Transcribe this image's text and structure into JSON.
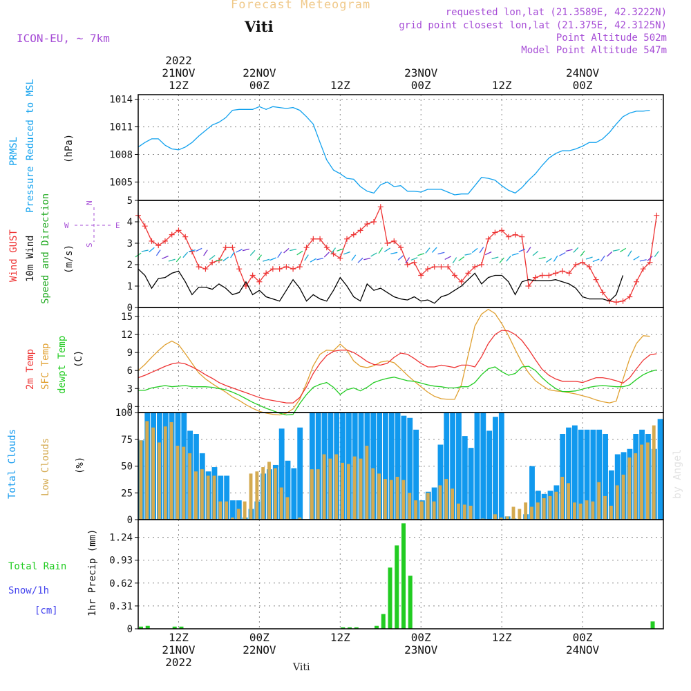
{
  "header": {
    "subtitle": "Forecast Meteogram",
    "location": "Viti",
    "model": "ICON-EU, ~ 7km",
    "requested": "requested lon,lat (21.3589E, 42.3222N)",
    "grid_point": "grid point closest lon,lat (21.375E, 42.3125N)",
    "point_altitude": "Point Altitude 502m",
    "model_altitude": "Model Point Altitude 547m",
    "footer": "Viti",
    "watermark": "by Angel"
  },
  "time_axis": {
    "top": [
      {
        "hour": "12Z",
        "date": "21NOV",
        "year": "2022"
      },
      {
        "hour": "00Z",
        "date": "22NOV"
      },
      {
        "hour": "12Z"
      },
      {
        "hour": "00Z",
        "date": "23NOV"
      },
      {
        "hour": "12Z"
      },
      {
        "hour": "00Z",
        "date": "24NOV"
      }
    ],
    "bottom": [
      {
        "hour": "12Z",
        "date": "21NOV",
        "year": "2022"
      },
      {
        "hour": "00Z",
        "date": "22NOV"
      },
      {
        "hour": "12Z"
      },
      {
        "hour": "00Z",
        "date": "23NOV"
      },
      {
        "hour": "12Z"
      },
      {
        "hour": "00Z",
        "date": "24NOV"
      }
    ]
  },
  "panel_labels": {
    "pressure": {
      "line1": "PRMSL",
      "line2": "Pressure Reduced to MSL",
      "unit": "(hPa)"
    },
    "wind": {
      "gust": "Wind GUST",
      "wind10": "10m Wind",
      "speed": "Speed and Direction",
      "unit": "(m/s)",
      "compass": {
        "n": "N",
        "s": "S",
        "w": "W",
        "e": "E"
      }
    },
    "temp": {
      "t2m": "2m Temp",
      "sfc": "SFC Temp",
      "dew": "dewpt Temp",
      "unit": "(C)"
    },
    "clouds": {
      "total": "Total Clouds",
      "low": "Low Clouds",
      "unit": "(%)"
    },
    "precip": {
      "rain": "Total  Rain",
      "snow": "Snow/1h",
      "snow_unit": "[cm]",
      "unit": "1hr Precip (mm)"
    }
  },
  "colors": {
    "pressure": "#11a1ee",
    "gust": "#ee3333",
    "wind": "#000000",
    "temp2m": "#ee3333",
    "sfc": "#e0a030",
    "dew": "#22cc22",
    "total_clouds": "#1199ee",
    "low_clouds": "#d4aa50",
    "rain": "#22cc22",
    "snow": "#4444ee",
    "purple": "#a64dd6"
  },
  "chart_data": [
    {
      "type": "line",
      "name": "pressure",
      "ylabel": "(hPa)",
      "ylim": [
        1003,
        1014.5
      ],
      "yticks": [
        1005,
        1008,
        1011,
        1014
      ],
      "x_start": "2022-11-21T06:00Z",
      "x_step_hours": 1,
      "series": [
        {
          "name": "PRMSL",
          "values": [
            1008.8,
            1009.3,
            1009.7,
            1009.7,
            1009.0,
            1008.6,
            1008.5,
            1008.8,
            1009.3,
            1010.0,
            1010.6,
            1011.2,
            1011.5,
            1012.0,
            1012.8,
            1012.9,
            1012.9,
            1012.9,
            1013.2,
            1012.9,
            1013.2,
            1013.1,
            1013.0,
            1013.1,
            1012.8,
            1012.1,
            1011.3,
            1009.3,
            1007.4,
            1006.3,
            1005.9,
            1005.4,
            1005.3,
            1004.5,
            1004.0,
            1003.8,
            1004.7,
            1005.0,
            1004.5,
            1004.6,
            1004.0,
            1004.0,
            1003.9,
            1004.2,
            1004.2,
            1004.2,
            1003.9,
            1003.6,
            1003.7,
            1003.7,
            1004.6,
            1005.5,
            1005.4,
            1005.2,
            1004.6,
            1004.1,
            1003.8,
            1004.4,
            1005.2,
            1005.9,
            1006.8,
            1007.6,
            1008.1,
            1008.4,
            1008.4,
            1008.6,
            1008.9,
            1009.3,
            1009.3,
            1009.7,
            1010.4,
            1011.3,
            1012.1,
            1012.5,
            1012.7,
            1012.7,
            1012.8
          ]
        }
      ]
    },
    {
      "type": "line",
      "name": "wind",
      "ylabel": "(m/s)",
      "ylim": [
        0,
        5
      ],
      "yticks": [
        0,
        1,
        2,
        3,
        4,
        5
      ],
      "x_start": "2022-11-21T06:00Z",
      "x_step_hours": 1,
      "series": [
        {
          "name": "Wind GUST",
          "values": [
            4.3,
            3.8,
            3.1,
            2.9,
            3.1,
            3.4,
            3.6,
            3.3,
            2.6,
            1.9,
            1.8,
            2.1,
            2.2,
            2.8,
            2.8,
            1.8,
            1.0,
            1.5,
            1.2,
            1.6,
            1.8,
            1.8,
            1.9,
            1.8,
            1.9,
            2.8,
            3.2,
            3.2,
            2.8,
            2.5,
            2.3,
            3.2,
            3.4,
            3.6,
            3.9,
            4.0,
            4.7,
            3.0,
            3.1,
            2.8,
            2.0,
            2.1,
            1.5,
            1.8,
            1.9,
            1.9,
            1.9,
            1.5,
            1.2,
            1.6,
            1.9,
            2.0,
            3.2,
            3.5,
            3.6,
            3.3,
            3.4,
            3.3,
            1.0,
            1.4,
            1.5,
            1.5,
            1.6,
            1.7,
            1.6,
            2.0,
            2.1,
            1.9,
            1.3,
            0.7,
            0.3,
            0.25,
            0.3,
            0.5,
            1.2,
            1.8,
            2.1,
            4.3
          ]
        },
        {
          "name": "10m Wind",
          "values": [
            1.8,
            1.5,
            0.9,
            1.35,
            1.4,
            1.6,
            1.7,
            1.2,
            0.6,
            0.95,
            0.95,
            0.85,
            1.1,
            0.9,
            0.6,
            0.7,
            1.2,
            0.6,
            0.8,
            0.5,
            0.4,
            0.3,
            0.8,
            1.3,
            0.9,
            0.3,
            0.6,
            0.4,
            0.3,
            0.8,
            1.4,
            1.0,
            0.5,
            0.3,
            1.1,
            0.8,
            0.9,
            0.7,
            0.5,
            0.4,
            0.35,
            0.5,
            0.3,
            0.35,
            0.2,
            0.5,
            0.6,
            0.8,
            1.0,
            1.3,
            1.6,
            1.1,
            1.4,
            1.5,
            1.5,
            1.2,
            0.6,
            1.2,
            1.3,
            1.25,
            1.25,
            1.25,
            1.3,
            1.2,
            1.1,
            0.9,
            0.5,
            0.4,
            0.4,
            0.4,
            0.3,
            0.6,
            1.5
          ]
        }
      ],
      "direction_arrows": "ok"
    },
    {
      "type": "line",
      "name": "temperature",
      "ylabel": "(C)",
      "ylim": [
        -1,
        16.5
      ],
      "yticks": [
        0,
        3,
        6,
        9,
        12,
        15
      ],
      "x_start": "2022-11-21T06:00Z",
      "x_step_hours": 1,
      "series": [
        {
          "name": "2m Temp",
          "values": [
            4.8,
            5.2,
            5.7,
            6.2,
            6.7,
            7.1,
            7.3,
            7.1,
            6.6,
            6.0,
            5.3,
            4.7,
            4.0,
            3.5,
            3.1,
            2.7,
            2.3,
            1.9,
            1.5,
            1.2,
            1.0,
            0.8,
            0.6,
            0.6,
            1.5,
            3.3,
            5.5,
            7.2,
            8.5,
            9.2,
            9.4,
            9.4,
            9.0,
            8.3,
            7.5,
            7.0,
            6.9,
            7.2,
            8.2,
            8.9,
            8.7,
            8.0,
            7.2,
            6.6,
            6.6,
            6.9,
            6.7,
            6.5,
            6.9,
            6.9,
            6.6,
            8.3,
            10.5,
            12.0,
            12.7,
            12.6,
            12.0,
            11.0,
            9.5,
            7.8,
            6.2,
            5.2,
            4.6,
            4.2,
            4.2,
            4.2,
            4.0,
            4.4,
            4.8,
            4.8,
            4.6,
            4.3,
            3.9,
            4.8,
            6.3,
            7.7,
            8.6,
            8.8
          ]
        },
        {
          "name": "SFC Temp",
          "values": [
            6.0,
            7.0,
            8.2,
            9.3,
            10.3,
            10.9,
            10.3,
            8.8,
            7.2,
            5.6,
            4.6,
            3.8,
            3.1,
            2.4,
            1.6,
            1.0,
            0.3,
            -0.3,
            -0.8,
            -1.1,
            -1.3,
            -1.4,
            -1.1,
            -0.4,
            1.2,
            3.9,
            6.8,
            8.7,
            9.4,
            9.3,
            10.4,
            9.4,
            7.6,
            6.7,
            6.5,
            6.8,
            7.4,
            7.6,
            7.3,
            6.3,
            5.2,
            4.2,
            3.3,
            2.4,
            1.7,
            1.3,
            1.2,
            1.2,
            3.6,
            8.5,
            13.4,
            15.4,
            16.2,
            15.5,
            13.8,
            11.8,
            9.5,
            7.3,
            5.6,
            4.3,
            3.5,
            2.8,
            2.6,
            2.5,
            2.3,
            2.1,
            1.8,
            1.5,
            1.1,
            0.8,
            0.6,
            0.9,
            4.5,
            8.0,
            10.5,
            11.8,
            11.7
          ]
        },
        {
          "name": "dewpt Temp",
          "values": [
            2.7,
            2.7,
            3.1,
            3.3,
            3.5,
            3.3,
            3.4,
            3.5,
            3.3,
            3.3,
            3.3,
            3.2,
            3.0,
            2.8,
            2.4,
            1.9,
            1.3,
            0.7,
            0.2,
            -0.3,
            -0.7,
            -1.1,
            -1.4,
            -1.3,
            0.5,
            2.0,
            3.2,
            3.7,
            4.0,
            3.2,
            2.0,
            2.8,
            3.1,
            2.6,
            3.2,
            4.0,
            4.4,
            4.7,
            4.9,
            4.6,
            4.3,
            4.2,
            3.9,
            3.6,
            3.4,
            3.3,
            3.1,
            3.1,
            3.3,
            3.3,
            4.0,
            5.3,
            6.3,
            6.6,
            5.8,
            5.2,
            5.5,
            6.6,
            6.7,
            6.0,
            4.8,
            3.8,
            3.0,
            2.5,
            2.5,
            2.6,
            2.9,
            3.2,
            3.4,
            3.5,
            3.4,
            3.3,
            3.3,
            3.6,
            4.5,
            5.3,
            5.8,
            6.1
          ]
        }
      ]
    },
    {
      "type": "bar",
      "name": "clouds",
      "ylabel": "(%)",
      "ylim": [
        0,
        100
      ],
      "yticks": [
        0,
        25,
        50,
        75,
        100
      ],
      "x_start": "2022-11-21T06:00Z",
      "x_step_hours": 1,
      "series": [
        {
          "name": "Total Clouds",
          "values": [
            74,
            100,
            100,
            100,
            100,
            100,
            100,
            100,
            83,
            80,
            62,
            45,
            49,
            41,
            41,
            18,
            18,
            2,
            10,
            17,
            43,
            47,
            51,
            85,
            55,
            48,
            86,
            0,
            100,
            100,
            100,
            100,
            100,
            100,
            100,
            100,
            100,
            100,
            100,
            100,
            100,
            100,
            100,
            97,
            95,
            84,
            18,
            26,
            30,
            70,
            100,
            100,
            100,
            78,
            67,
            100,
            100,
            83,
            96,
            100,
            3,
            1,
            0,
            5,
            50,
            27,
            24,
            27,
            32,
            80,
            86,
            88,
            84,
            84,
            84,
            84,
            80,
            46,
            61,
            63,
            66,
            80,
            84,
            80,
            66,
            94
          ]
        },
        {
          "name": "Low Clouds",
          "values": [
            74,
            92,
            86,
            72,
            87,
            91,
            69,
            68,
            62,
            45,
            47,
            41,
            41,
            17,
            17,
            2,
            10,
            17,
            43,
            45,
            49,
            54,
            48,
            30,
            21,
            0,
            2,
            0,
            47,
            47,
            61,
            57,
            61,
            53,
            52,
            59,
            57,
            69,
            48,
            43,
            38,
            37,
            40,
            37,
            25,
            18,
            17,
            25,
            17,
            32,
            38,
            29,
            15,
            14,
            13,
            0,
            1,
            0,
            5,
            2,
            3,
            12,
            10,
            16,
            12,
            16,
            20,
            22,
            26,
            40,
            34,
            16,
            15,
            18,
            17,
            35,
            22,
            13,
            32,
            42,
            58,
            62,
            70,
            72,
            88
          ]
        }
      ]
    },
    {
      "type": "bar",
      "name": "precipitation",
      "ylabel": "1hr Precip (mm)",
      "ylim": [
        0,
        1.48
      ],
      "yticks": [
        0,
        0.31,
        0.62,
        0.93,
        1.24
      ],
      "x_start": "2022-11-21T06:00Z",
      "x_step_hours": 1,
      "series": [
        {
          "name": "Total Rain",
          "values": [
            0.03,
            0.04,
            0,
            0,
            0,
            0.03,
            0.03,
            0,
            0,
            0,
            0,
            0,
            0,
            0,
            0,
            0,
            0,
            0,
            0,
            0,
            0,
            0,
            0,
            0,
            0,
            0,
            0,
            0,
            0,
            0,
            0.02,
            0.02,
            0.02,
            0,
            0,
            0.04,
            0.2,
            0.83,
            1.13,
            1.43,
            0.72,
            0,
            0,
            0,
            0,
            0,
            0,
            0,
            0,
            0,
            0,
            0,
            0,
            0,
            0,
            0,
            0,
            0,
            0,
            0,
            0,
            0,
            0,
            0,
            0,
            0,
            0,
            0,
            0,
            0,
            0,
            0,
            0,
            0,
            0,
            0,
            0.1
          ]
        },
        {
          "name": "Snow/1h",
          "values": []
        }
      ]
    }
  ]
}
